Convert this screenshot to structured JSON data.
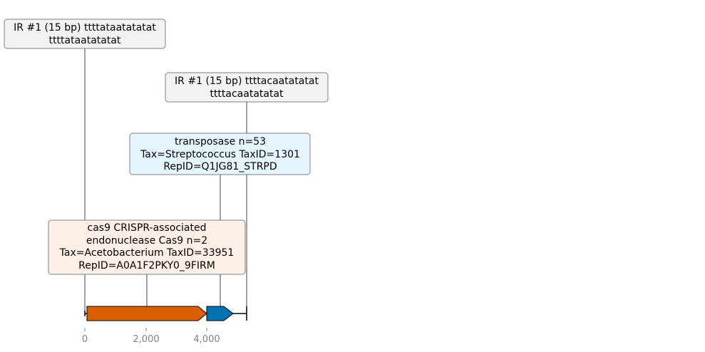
{
  "annotations": [
    {
      "lines": [
        "IR #1 (15 bp) ttttataatatatat",
        "ttttataatatatat"
      ],
      "fill": "#f2f2f2",
      "border": "#7f7f7f"
    },
    {
      "lines": [
        "IR #1 (15 bp) ttttacaatatatat",
        "ttttacaatatatat"
      ],
      "fill": "#f2f2f2",
      "border": "#7f7f7f"
    },
    {
      "lines": [
        "transposase n=53",
        "Tax=Streptococcus TaxID=1301",
        "RepID=Q1JG81_STRPD"
      ],
      "fill": "#e5f5fd",
      "border": "#7f7f7f"
    },
    {
      "lines": [
        "cas9 CRISPR-associated",
        "endonuclease Cas9 n=2",
        "Tax=Acetobacterium TaxID=33951",
        "RepID=A0A1F2PKY0_9FIRM"
      ],
      "fill": "#fef0e6",
      "border": "#7f7f7f"
    }
  ],
  "features": [
    {
      "name": "cas9",
      "start": 50,
      "end": 3950,
      "strand": "+",
      "color": "#d95f02"
    },
    {
      "name": "transposase",
      "start": 3980,
      "end": 4850,
      "strand": "+",
      "color": "#0072b2"
    }
  ],
  "sequence_end": 5300,
  "axis": {
    "ticks": [
      "0",
      "2,000",
      "4,000"
    ]
  },
  "colors": {
    "line": "#000000",
    "tick_text": "#808080"
  }
}
